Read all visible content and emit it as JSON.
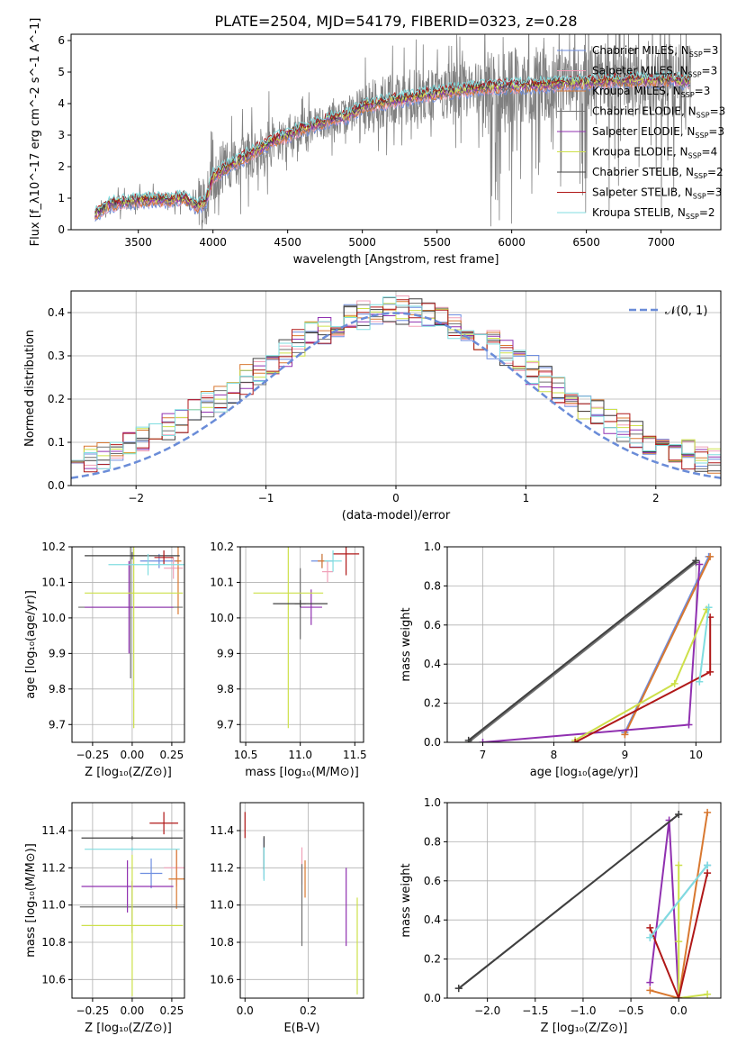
{
  "figure": {
    "title": "PLATE=2504, MJD=54179, FIBERID=0323, z=0.28"
  },
  "series_styles": [
    {
      "name": "Chabrier MILES",
      "nssp": "3",
      "color": "#6e8ee0",
      "mark": "+"
    },
    {
      "name": "Salpeter MILES",
      "nssp": "3",
      "color": "#f0a0b8",
      "mark": "+"
    },
    {
      "name": "Kroupa MILES",
      "nssp": "3",
      "color": "#d87830",
      "mark": "+"
    },
    {
      "name": "Chabrier ELODIE",
      "nssp": "3",
      "color": "#707070",
      "mark": "+"
    },
    {
      "name": "Salpeter ELODIE",
      "nssp": "3",
      "color": "#9030b0",
      "mark": "+"
    },
    {
      "name": "Kroupa ELODIE",
      "nssp": "4",
      "color": "#cde04a",
      "mark": "+"
    },
    {
      "name": "Chabrier STELIB",
      "nssp": "2",
      "color": "#404040",
      "mark": "+"
    },
    {
      "name": "Salpeter STELIB",
      "nssp": "3",
      "color": "#b01818",
      "mark": "+"
    },
    {
      "name": "Kroupa STELIB",
      "nssp": "2",
      "color": "#80dde0",
      "mark": "+"
    }
  ],
  "chart_data": [
    {
      "id": "spectrum",
      "type": "line",
      "xlabel": "wavelength [Angstrom, rest frame]",
      "ylabel": "Flux [f_λ10^-17 erg cm^-2 s^-1 A^-1]",
      "xlim": [
        3050,
        7400
      ],
      "ylim": [
        0,
        6.2
      ],
      "xticks": [
        3500,
        4000,
        4500,
        5000,
        5500,
        6000,
        6500,
        7000
      ],
      "yticks": [
        0,
        1,
        2,
        3,
        4,
        5,
        6
      ],
      "grid": false,
      "legend": "top-right",
      "data_color": "#808080",
      "model_anchors": {
        "x": [
          3200,
          3300,
          3450,
          3550,
          3700,
          3800,
          3900,
          3950,
          4000,
          4100,
          4250,
          4400,
          4600,
          4800,
          4900,
          5000,
          5200,
          5400,
          5600,
          5800,
          6000,
          6200,
          6400,
          6600,
          6800,
          7000,
          7200
        ],
        "y": [
          0.45,
          0.8,
          0.9,
          0.95,
          0.95,
          1.0,
          0.75,
          0.85,
          1.7,
          2.0,
          2.4,
          2.8,
          3.2,
          3.5,
          3.6,
          3.9,
          4.1,
          4.25,
          4.4,
          4.5,
          4.55,
          4.6,
          4.65,
          4.7,
          4.75,
          4.75,
          4.7
        ]
      }
    },
    {
      "id": "residuals",
      "type": "histogram",
      "xlabel": "(data-model)/error",
      "ylabel": "Normed distribution",
      "xlim": [
        -2.5,
        2.5
      ],
      "ylim": [
        0,
        0.45
      ],
      "xticks": [
        -2,
        -1,
        0,
        1,
        2
      ],
      "yticks": [
        0.0,
        0.1,
        0.2,
        0.3,
        0.4
      ],
      "grid": true,
      "legend": "top-right",
      "reference_label": "𝒩(0, 1)",
      "reference_color": "#6a8cd8",
      "bin_width": 0.1
    },
    {
      "id": "age-vs-Z",
      "type": "errorbar",
      "xlabel": "Z [log₁₀(Z/Z⊙)]",
      "ylabel": "age  [log₁₀(age/yr)]",
      "xlim": [
        -0.38,
        0.33
      ],
      "ylim": [
        9.65,
        10.2
      ],
      "xticks": [
        -0.25,
        0.0,
        0.25
      ],
      "yticks": [
        9.7,
        9.8,
        9.9,
        10.0,
        10.1,
        10.2
      ],
      "grid": true,
      "points": [
        {
          "series": 0,
          "x": 0.17,
          "y": 10.16,
          "xerr": 0.12,
          "yerr": 0.02
        },
        {
          "series": 1,
          "x": 0.26,
          "y": 10.14,
          "xerr": 0.06,
          "yerr": 0.03
        },
        {
          "series": 2,
          "x": 0.29,
          "y": 10.16,
          "xerr": 0.02,
          "yerr": 0.15
        },
        {
          "series": 3,
          "x": -0.01,
          "y": 10.03,
          "xerr": 0.33,
          "yerr": 0.2
        },
        {
          "series": 4,
          "x": -0.02,
          "y": 10.03,
          "xerr": 0.28,
          "yerr": 0.13
        },
        {
          "series": 5,
          "x": 0.01,
          "y": 10.07,
          "xerr": 0.31,
          "yerr": 0.38
        },
        {
          "series": 6,
          "x": 0.0,
          "y": 10.175,
          "xerr": 0.3,
          "yerr": 0.01
        },
        {
          "series": 7,
          "x": 0.2,
          "y": 10.17,
          "xerr": 0.06,
          "yerr": 0.02
        },
        {
          "series": 8,
          "x": 0.1,
          "y": 10.15,
          "xerr": 0.25,
          "yerr": 0.03
        }
      ]
    },
    {
      "id": "age-vs-mass",
      "type": "errorbar",
      "xlabel": "mass [log₁₀(M/M⊙)]",
      "ylabel": "",
      "xlim": [
        10.45,
        11.58
      ],
      "ylim": [
        9.65,
        10.2
      ],
      "xticks": [
        10.5,
        11.0,
        11.5
      ],
      "yticks": [
        9.7,
        9.8,
        9.9,
        10.0,
        10.1,
        10.2
      ],
      "grid": true,
      "points": [
        {
          "series": 0,
          "x": 11.2,
          "y": 10.16,
          "xerr": 0.1,
          "yerr": 0.02
        },
        {
          "series": 1,
          "x": 11.25,
          "y": 10.13,
          "xerr": 0.05,
          "yerr": 0.03
        },
        {
          "series": 2,
          "x": 11.2,
          "y": 10.16,
          "xerr": 0.04,
          "yerr": 0.02
        },
        {
          "series": 3,
          "x": 11.0,
          "y": 10.04,
          "xerr": 0.05,
          "yerr": 0.1
        },
        {
          "series": 4,
          "x": 11.1,
          "y": 10.03,
          "xerr": 0.1,
          "yerr": 0.05
        },
        {
          "series": 5,
          "x": 10.89,
          "y": 10.07,
          "xerr": 0.32,
          "yerr": 0.38
        },
        {
          "series": 6,
          "x": 11.0,
          "y": 10.04,
          "xerr": 0.25,
          "yerr": 0.01
        },
        {
          "series": 7,
          "x": 11.42,
          "y": 10.18,
          "xerr": 0.12,
          "yerr": 0.06
        },
        {
          "series": 8,
          "x": 11.3,
          "y": 10.16,
          "xerr": 0.08,
          "yerr": 0.03
        }
      ]
    },
    {
      "id": "weight-vs-age",
      "type": "line",
      "xlabel": "age  [log₁₀(age/yr)]",
      "ylabel": "mass weight",
      "xlim": [
        6.5,
        10.35
      ],
      "ylim": [
        0,
        1.0
      ],
      "xticks": [
        7,
        8,
        9,
        10
      ],
      "yticks": [
        0.0,
        0.2,
        0.4,
        0.6,
        0.8,
        1.0
      ],
      "grid": true,
      "lines": [
        {
          "series": 0,
          "x": [
            9.0,
            10.18
          ],
          "y": [
            0.05,
            0.95
          ]
        },
        {
          "series": 2,
          "x": [
            9.0,
            10.2
          ],
          "y": [
            0.04,
            0.95
          ]
        },
        {
          "series": 3,
          "x": [
            6.8,
            10.0
          ],
          "y": [
            0.0,
            0.92
          ]
        },
        {
          "series": 4,
          "x": [
            7.0,
            9.9,
            10.05
          ],
          "y": [
            0.0,
            0.09,
            0.91
          ]
        },
        {
          "series": 5,
          "x": [
            8.3,
            9.7,
            10.15
          ],
          "y": [
            0.01,
            0.3,
            0.68
          ]
        },
        {
          "series": 6,
          "x": [
            6.8,
            10.0
          ],
          "y": [
            0.01,
            0.93
          ]
        },
        {
          "series": 7,
          "x": [
            8.3,
            10.2,
            10.2
          ],
          "y": [
            0.0,
            0.36,
            0.64
          ]
        },
        {
          "series": 8,
          "x": [
            10.05,
            10.18
          ],
          "y": [
            0.31,
            0.69
          ]
        }
      ]
    },
    {
      "id": "mass-vs-Z",
      "type": "errorbar",
      "xlabel": "Z [log₁₀(Z/Z⊙)]",
      "ylabel": "mass [log₁₀(M/M⊙)]",
      "xlim": [
        -0.38,
        0.33
      ],
      "ylim": [
        10.5,
        11.55
      ],
      "xticks": [
        -0.25,
        0.0,
        0.25
      ],
      "yticks": [
        10.6,
        10.8,
        11.0,
        11.2,
        11.4
      ],
      "grid": true,
      "points": [
        {
          "series": 0,
          "x": 0.12,
          "y": 11.17,
          "xerr": 0.07,
          "yerr": 0.08
        },
        {
          "series": 1,
          "x": 0.28,
          "y": 11.2,
          "xerr": 0.08,
          "yerr": 0.1
        },
        {
          "series": 2,
          "x": 0.28,
          "y": 11.14,
          "xerr": 0.05,
          "yerr": 0.16
        },
        {
          "series": 3,
          "x": 0.0,
          "y": 10.99,
          "xerr": 0.33,
          "yerr": 0.14
        },
        {
          "series": 4,
          "x": -0.03,
          "y": 11.1,
          "xerr": 0.29,
          "yerr": 0.14
        },
        {
          "series": 5,
          "x": 0.0,
          "y": 10.89,
          "xerr": 0.32,
          "yerr": 0.38
        },
        {
          "series": 6,
          "x": 0.0,
          "y": 11.36,
          "xerr": 0.32,
          "yerr": 0.01
        },
        {
          "series": 7,
          "x": 0.2,
          "y": 11.44,
          "xerr": 0.09,
          "yerr": 0.06
        },
        {
          "series": 8,
          "x": 0.0,
          "y": 11.3,
          "xerr": 0.3,
          "yerr": 0.01
        }
      ]
    },
    {
      "id": "mass-vs-ebv",
      "type": "errorbar",
      "xlabel": "E(B-V)",
      "ylabel": "",
      "xlim": [
        -0.015,
        0.375
      ],
      "ylim": [
        10.5,
        11.55
      ],
      "xticks": [
        0.0,
        0.2
      ],
      "yticks": [
        10.6,
        10.8,
        11.0,
        11.2,
        11.4
      ],
      "grid": true,
      "points": [
        {
          "series": 0,
          "x": 0.06,
          "y": 11.25,
          "yerr": 0.11
        },
        {
          "series": 1,
          "x": 0.18,
          "y": 11.21,
          "yerr": 0.1
        },
        {
          "series": 2,
          "x": 0.19,
          "y": 11.14,
          "yerr": 0.1
        },
        {
          "series": 3,
          "x": 0.18,
          "y": 11.0,
          "yerr": 0.22
        },
        {
          "series": 4,
          "x": 0.32,
          "y": 10.99,
          "yerr": 0.21
        },
        {
          "series": 5,
          "x": 0.355,
          "y": 10.78,
          "yerr": 0.26
        },
        {
          "series": 6,
          "x": 0.06,
          "y": 11.28,
          "yerr": 0.09
        },
        {
          "series": 7,
          "x": 0.0,
          "y": 11.43,
          "yerr": 0.07
        },
        {
          "series": 8,
          "x": 0.06,
          "y": 11.22,
          "yerr": 0.09
        }
      ]
    },
    {
      "id": "weight-vs-Z",
      "type": "line",
      "xlabel": "Z [log₁₀(Z/Z⊙)]",
      "ylabel": "mass weight",
      "xlim": [
        -2.42,
        0.44
      ],
      "ylim": [
        0,
        1.0
      ],
      "xticks": [
        -2.0,
        -1.5,
        -1.0,
        -0.5,
        0.0
      ],
      "yticks": [
        0.0,
        0.2,
        0.4,
        0.6,
        0.8,
        1.0
      ],
      "grid": true,
      "lines": [
        {
          "series": 0,
          "x": [
            -0.3,
            0.3
          ],
          "y": [
            0.31,
            0.68
          ]
        },
        {
          "series": 2,
          "x": [
            -0.3,
            0.0,
            0.3
          ],
          "y": [
            0.04,
            0.0,
            0.95
          ]
        },
        {
          "series": 3,
          "x": [
            -2.3,
            0.0
          ],
          "y": [
            0.05,
            0.94
          ]
        },
        {
          "series": 4,
          "x": [
            -0.3,
            -0.1,
            0.0
          ],
          "y": [
            0.08,
            0.91,
            0.0
          ]
        },
        {
          "series": 5,
          "x": [
            0.0,
            0.0,
            0.0,
            0.3
          ],
          "y": [
            0.68,
            0.29,
            0.0,
            0.02
          ]
        },
        {
          "series": 6,
          "x": [
            -2.3,
            0.0
          ],
          "y": [
            0.05,
            0.94
          ]
        },
        {
          "series": 7,
          "x": [
            -0.3,
            0.0,
            0.3
          ],
          "y": [
            0.36,
            0.0,
            0.64
          ]
        },
        {
          "series": 8,
          "x": [
            -0.3,
            0.3
          ],
          "y": [
            0.31,
            0.68
          ]
        }
      ]
    }
  ]
}
